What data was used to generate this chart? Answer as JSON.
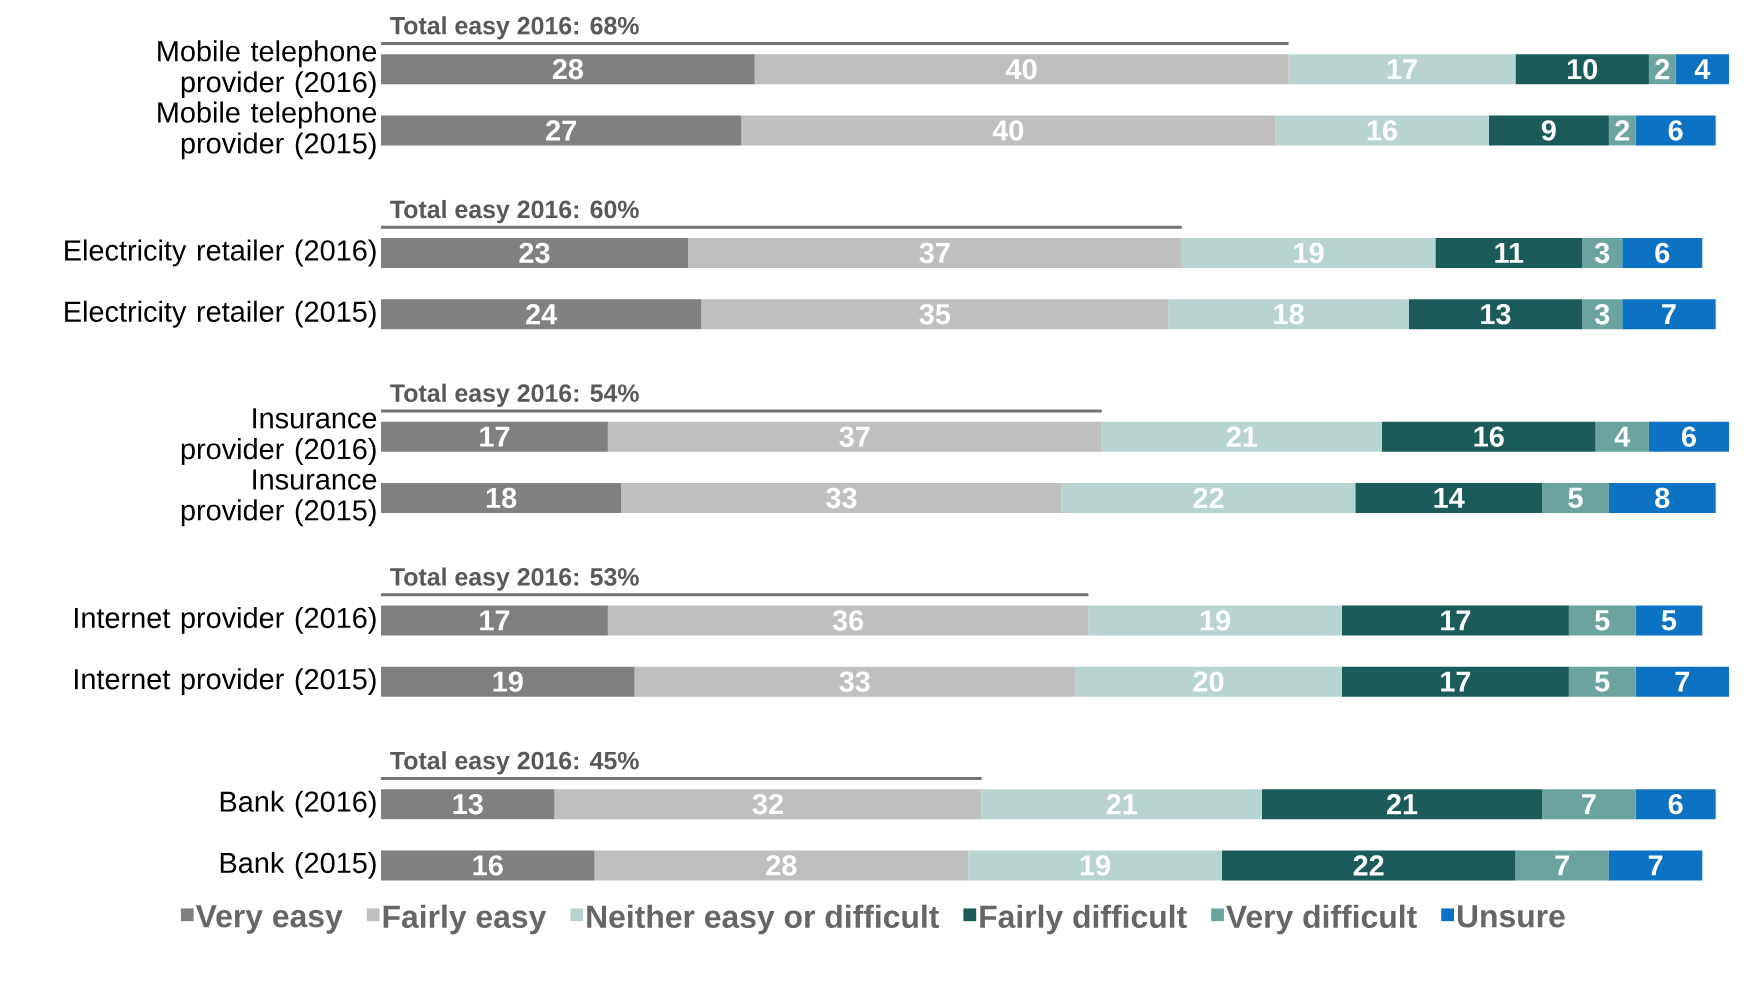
{
  "chart_data": {
    "type": "bar",
    "orientation": "horizontal",
    "stacked": true,
    "data_labels": true,
    "legend": "bottom",
    "categories": [
      "Mobile telephone provider (2016)",
      "Mobile telephone provider (2015)",
      "Electricity retailer (2016)",
      "Electricity retailer (2015)",
      "Insurance provider (2016)",
      "Insurance provider (2015)",
      "Internet provider (2016)",
      "Internet provider (2015)",
      "Bank (2016)",
      "Bank (2015)"
    ],
    "series": [
      {
        "name": "Very easy",
        "color": "#808080",
        "values": [
          28,
          27,
          23,
          24,
          17,
          18,
          17,
          19,
          13,
          16
        ]
      },
      {
        "name": "Fairly easy",
        "color": "#bfbfbf",
        "values": [
          40,
          40,
          37,
          35,
          37,
          33,
          36,
          33,
          32,
          28
        ]
      },
      {
        "name": "Neither easy or difficult",
        "color": "#b8d4d1",
        "values": [
          17,
          16,
          19,
          18,
          21,
          22,
          19,
          20,
          21,
          19
        ]
      },
      {
        "name": "Fairly difficult",
        "color": "#1b5b5a",
        "values": [
          10,
          9,
          11,
          13,
          16,
          14,
          17,
          17,
          21,
          22
        ]
      },
      {
        "name": "Very difficult",
        "color": "#6ba39e",
        "values": [
          2,
          2,
          3,
          3,
          4,
          5,
          5,
          5,
          7,
          7
        ]
      },
      {
        "name": "Unsure",
        "color": "#0b72c4",
        "values": [
          4,
          6,
          6,
          7,
          6,
          8,
          5,
          7,
          6,
          7
        ]
      }
    ],
    "annotations": [
      "Total easy 2016: 68%",
      "Total easy 2016: 60%",
      "Total easy 2016: 54%",
      "Total easy 2016: 53%",
      "Total easy 2016: 45%"
    ]
  }
}
